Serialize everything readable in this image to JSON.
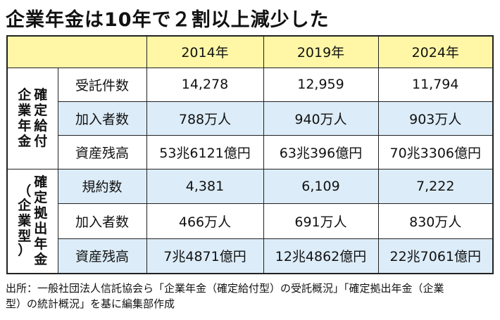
{
  "title": "企業年金は10年で２割以上減少した",
  "header_years": [
    "2014年",
    "2019年",
    "2024年"
  ],
  "groups": [
    {
      "name_columns": [
        [
          "確",
          "定",
          "給",
          "付"
        ],
        [
          "企",
          "業",
          "年",
          "金"
        ]
      ],
      "rows": [
        {
          "label": "受託件数",
          "values": [
            "14,278",
            "12,959",
            "11,794"
          ]
        },
        {
          "label": "加入者数",
          "values": [
            "788万人",
            "940万人",
            "903万人"
          ]
        },
        {
          "label": "資産残高",
          "values": [
            "53兆6121億円",
            "63兆396億円",
            "70兆3306億円"
          ]
        }
      ]
    },
    {
      "name_columns": [
        [
          "確",
          "定",
          "拠",
          "出",
          "年",
          "金"
        ],
        [
          "（",
          "企",
          "業",
          "型",
          "）"
        ]
      ],
      "rows": [
        {
          "label": "規約数",
          "values": [
            "4,381",
            "6,109",
            "7,222"
          ]
        },
        {
          "label": "加入者数",
          "values": [
            "466万人",
            "691万人",
            "830万人"
          ]
        },
        {
          "label": "資産残高",
          "values": [
            "7兆4871億円",
            "12兆4862億円",
            "22兆7061億円"
          ]
        }
      ]
    }
  ],
  "source_line1": "出所：一般社団法人信託協会ら「企業年金（確定給付型）の受託概況」「確定拠出年金（企業",
  "source_line2": "型）の統計概況」を基に編集部作成"
}
